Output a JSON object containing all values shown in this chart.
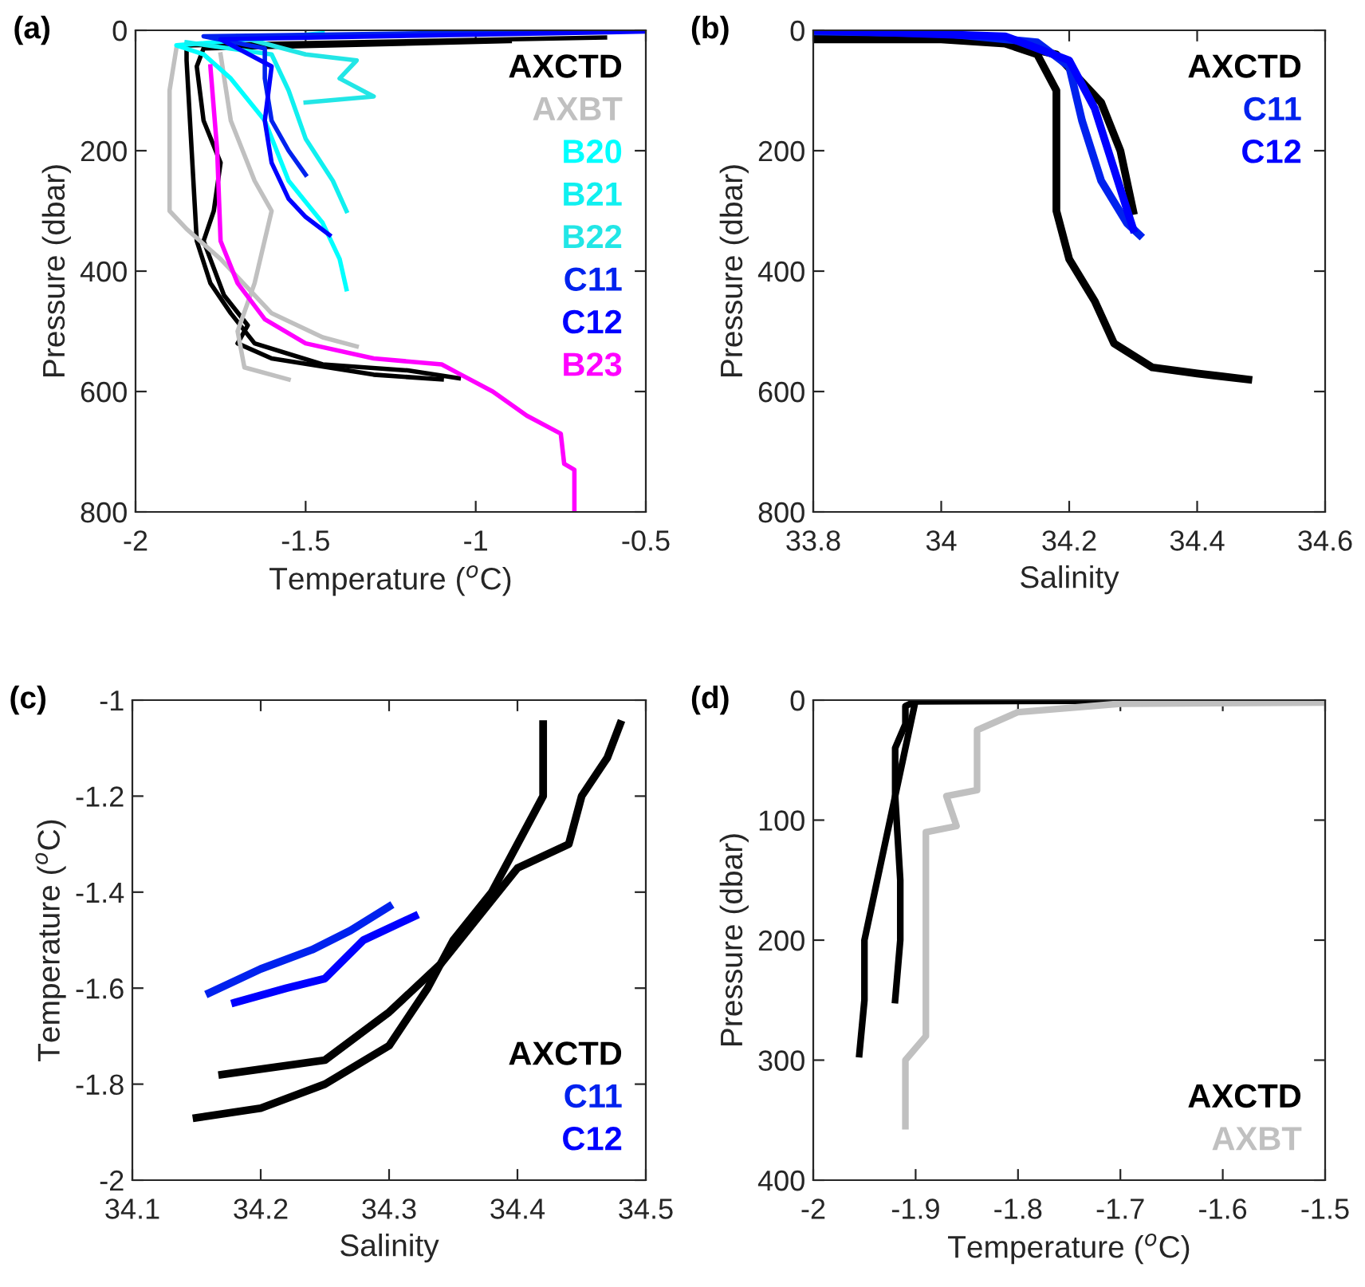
{
  "chart_data": [
    {
      "type": "line",
      "title": "(a)",
      "xlabel": "Temperature ($^{o}$C)",
      "ylabel": "Pressure (dbar)",
      "xlim": [
        -2,
        -0.5
      ],
      "ylim": [
        800,
        0
      ],
      "xticks": [
        -2,
        -1.5,
        -1,
        -0.5
      ],
      "yticks": [
        0,
        200,
        400,
        600,
        800
      ],
      "legend": "top right",
      "series": [
        {
          "name": "AXCTD",
          "color": "#000000",
          "x": [
            -0.62,
            -1.85,
            -1.85,
            -1.84,
            -1.83,
            -1.82,
            -1.78,
            -1.72,
            -1.65,
            -1.45,
            -1.2,
            -1.05
          ],
          "values": [
            12,
            25,
            50,
            150,
            250,
            350,
            420,
            470,
            520,
            555,
            565,
            578
          ]
        },
        {
          "color": "#000000",
          "x": [
            -0.9,
            -1.8,
            -1.82,
            -1.8,
            -1.75,
            -1.77,
            -1.8,
            -1.74,
            -1.67,
            -1.7,
            -1.6,
            -1.3,
            -1.1
          ],
          "values": [
            18,
            30,
            60,
            150,
            220,
            300,
            350,
            440,
            490,
            520,
            545,
            572,
            580
          ]
        },
        {
          "name": "AXBT",
          "color": "#c0c0c0",
          "x": [
            -1.88,
            -1.9,
            -1.9,
            -1.85,
            -1.75,
            -1.6,
            -1.45,
            -1.35
          ],
          "values": [
            30,
            100,
            300,
            330,
            380,
            470,
            510,
            525
          ]
        },
        {
          "color": "#c0c0c0",
          "x": [
            -1.75,
            -1.72,
            -1.65,
            -1.6,
            -1.65,
            -1.7,
            -1.68,
            -1.55
          ],
          "values": [
            40,
            150,
            250,
            300,
            420,
            500,
            560,
            580
          ]
        },
        {
          "name": "B20",
          "color": "#00ffff",
          "x": [
            -1.45,
            -1.88,
            -1.8,
            -1.72,
            -1.62,
            -1.55,
            -1.45,
            -1.4,
            -1.38
          ],
          "values": [
            5,
            25,
            40,
            80,
            150,
            250,
            320,
            380,
            430
          ]
        },
        {
          "name": "B21",
          "color": "#10f0f0",
          "x": [
            -1.85,
            -1.6,
            -1.55,
            -1.5,
            -1.42,
            -1.38
          ],
          "values": [
            20,
            40,
            100,
            180,
            250,
            300
          ]
        },
        {
          "name": "B22",
          "color": "#22e6e6",
          "x": [
            -1.7,
            -1.5,
            -1.35,
            -1.4,
            -1.3,
            -1.5
          ],
          "values": [
            10,
            40,
            50,
            80,
            110,
            120
          ]
        },
        {
          "name": "C11",
          "color": "#0022ee",
          "x": [
            -0.5,
            -1.8,
            -1.62,
            -1.62,
            -1.6,
            -1.55,
            -1.5
          ],
          "values": [
            0,
            10,
            30,
            80,
            150,
            200,
            240
          ]
        },
        {
          "name": "C12",
          "color": "#0000ff",
          "x": [
            -0.5,
            -1.75,
            -1.6,
            -1.62,
            -1.6,
            -1.55,
            -1.5,
            -1.43
          ],
          "values": [
            2,
            15,
            60,
            150,
            220,
            280,
            310,
            340
          ]
        },
        {
          "name": "B23",
          "color": "#ff00ff",
          "x": [
            -1.78,
            -1.76,
            -1.75,
            -1.7,
            -1.62,
            -1.5,
            -1.3,
            -1.1,
            -1.05,
            -0.95,
            -0.85,
            -0.75,
            -0.74,
            -0.71,
            -0.71
          ],
          "values": [
            60,
            200,
            350,
            420,
            480,
            520,
            545,
            555,
            570,
            600,
            640,
            670,
            720,
            730,
            800
          ]
        }
      ]
    },
    {
      "type": "line",
      "title": "(b)",
      "xlabel": "Salinity",
      "ylabel": "Pressure (dbar)",
      "xlim": [
        33.8,
        34.6
      ],
      "ylim": [
        800,
        0
      ],
      "xticks": [
        33.8,
        34,
        34.2,
        34.4,
        34.6
      ],
      "yticks": [
        0,
        200,
        400,
        600,
        800
      ],
      "legend": "top right",
      "series": [
        {
          "name": "AXCTD",
          "color": "#000000",
          "x": [
            33.8,
            34.0,
            34.1,
            34.15,
            34.18,
            34.18,
            34.18,
            34.2,
            34.24,
            34.27,
            34.33,
            34.4,
            34.48
          ],
          "values": [
            15,
            15,
            22,
            40,
            100,
            200,
            300,
            380,
            450,
            520,
            560,
            570,
            580
          ]
        },
        {
          "color": "#000000",
          "x": [
            33.8,
            34.05,
            34.18,
            34.25,
            34.28,
            34.3
          ],
          "values": [
            5,
            10,
            40,
            120,
            200,
            300
          ]
        },
        {
          "name": "C11",
          "color": "#0022ee",
          "x": [
            33.8,
            34.0,
            34.15,
            34.2,
            34.22,
            34.25,
            34.29,
            34.31
          ],
          "values": [
            2,
            5,
            20,
            60,
            150,
            250,
            320,
            340
          ]
        },
        {
          "name": "C12",
          "color": "#0000ff",
          "x": [
            33.8,
            34.1,
            34.2,
            34.24,
            34.27,
            34.3
          ],
          "values": [
            0,
            10,
            50,
            130,
            230,
            330
          ]
        }
      ]
    },
    {
      "type": "line",
      "title": "(c)",
      "xlabel": "Salinity",
      "ylabel": "Temperature ($^{o}$C)",
      "xlim": [
        34.1,
        34.5
      ],
      "ylim": [
        -2,
        -1
      ],
      "xticks": [
        34.1,
        34.2,
        34.3,
        34.4,
        34.5
      ],
      "yticks": [
        -2,
        -1.8,
        -1.6,
        -1.4,
        -1.2,
        -1
      ],
      "legend": "bottom right",
      "series": [
        {
          "name": "AXCTD",
          "color": "#000000",
          "x": [
            34.15,
            34.2,
            34.25,
            34.3,
            34.33,
            34.35,
            34.38,
            34.4,
            34.42,
            34.42
          ],
          "values": [
            -1.87,
            -1.85,
            -1.8,
            -1.72,
            -1.6,
            -1.5,
            -1.4,
            -1.3,
            -1.2,
            -1.05
          ]
        },
        {
          "color": "#000000",
          "x": [
            34.17,
            34.25,
            34.3,
            34.34,
            34.37,
            34.4,
            34.44,
            34.45,
            34.47,
            34.48
          ],
          "values": [
            -1.78,
            -1.75,
            -1.65,
            -1.55,
            -1.45,
            -1.35,
            -1.3,
            -1.2,
            -1.12,
            -1.05
          ]
        },
        {
          "name": "C11",
          "color": "#0022ee",
          "x": [
            34.16,
            34.2,
            34.24,
            34.27,
            34.3
          ],
          "values": [
            -1.61,
            -1.56,
            -1.52,
            -1.48,
            -1.43
          ]
        },
        {
          "name": "C12",
          "color": "#0000ff",
          "x": [
            34.18,
            34.22,
            34.25,
            34.28,
            34.32
          ],
          "values": [
            -1.63,
            -1.6,
            -1.58,
            -1.5,
            -1.45
          ]
        }
      ]
    },
    {
      "type": "line",
      "title": "(d)",
      "xlabel": "Temperature ($^{o}$C)",
      "ylabel": "Pressure (dbar)",
      "xlim": [
        -2,
        -1.5
      ],
      "ylim": [
        400,
        0
      ],
      "xticks": [
        -2,
        -1.9,
        -1.8,
        -1.7,
        -1.6,
        -1.5
      ],
      "yticks": [
        0,
        100,
        200,
        300,
        400
      ],
      "legend": "bottom right",
      "series": [
        {
          "name": "AXCTD",
          "color": "#000000",
          "x": [
            -1.5,
            -1.9,
            -1.91,
            -1.91,
            -1.92,
            -1.92,
            -1.915,
            -1.915,
            -1.92
          ],
          "values": [
            0,
            1,
            5,
            20,
            40,
            80,
            150,
            200,
            250
          ]
        },
        {
          "color": "#000000",
          "x": [
            -1.9,
            -1.95,
            -1.95,
            -1.955
          ],
          "values": [
            0,
            200,
            250,
            295
          ]
        },
        {
          "name": "AXBT",
          "color": "#c0c0c0",
          "x": [
            -1.5,
            -1.7,
            -1.8,
            -1.84,
            -1.84,
            -1.87,
            -1.86,
            -1.89,
            -1.89,
            -1.91,
            -1.91
          ],
          "values": [
            2,
            3,
            10,
            25,
            75,
            80,
            105,
            110,
            280,
            300,
            355
          ]
        }
      ]
    }
  ]
}
